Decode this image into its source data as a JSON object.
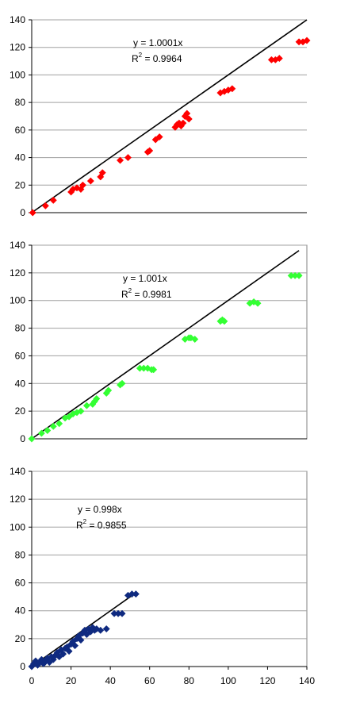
{
  "chart_data": [
    {
      "type": "scatter",
      "xlim": [
        0,
        140
      ],
      "ylim": [
        0,
        140
      ],
      "yticks": [
        "0",
        "20",
        "40",
        "60",
        "80",
        "100",
        "120",
        "140"
      ],
      "xticks": [],
      "grid": "horizontal",
      "marker": "diamond",
      "color": "#ff0000",
      "trendline": {
        "slope": 1.0001,
        "color": "#000000"
      },
      "annotation": {
        "equation": "y = 1.0001x",
        "r2_label": "R",
        "r2_sup": "2",
        "r2_value": " = 0.9964"
      },
      "points": [
        [
          0.5,
          0
        ],
        [
          7,
          5
        ],
        [
          11,
          9
        ],
        [
          20,
          15
        ],
        [
          21,
          17
        ],
        [
          23,
          18
        ],
        [
          25,
          17
        ],
        [
          26,
          20
        ],
        [
          30,
          23
        ],
        [
          35,
          26
        ],
        [
          36,
          29
        ],
        [
          45,
          38
        ],
        [
          49,
          40
        ],
        [
          59,
          44
        ],
        [
          60,
          45
        ],
        [
          63,
          53
        ],
        [
          65,
          55
        ],
        [
          73,
          62
        ],
        [
          74,
          64
        ],
        [
          75,
          65
        ],
        [
          76,
          63
        ],
        [
          77,
          65
        ],
        [
          78,
          70
        ],
        [
          79,
          72
        ],
        [
          80,
          68
        ],
        [
          96,
          87
        ],
        [
          98,
          88
        ],
        [
          100,
          89
        ],
        [
          102,
          90
        ],
        [
          122,
          111
        ],
        [
          124,
          111
        ],
        [
          126,
          112
        ],
        [
          136,
          124
        ],
        [
          138,
          124
        ],
        [
          140,
          125
        ]
      ]
    },
    {
      "type": "scatter",
      "xlim": [
        0,
        140
      ],
      "ylim": [
        0,
        140
      ],
      "yticks": [
        "0",
        "20",
        "40",
        "60",
        "80",
        "100",
        "120",
        "140"
      ],
      "xticks": [],
      "grid": "horizontal",
      "marker": "diamond",
      "color": "#33ff33",
      "trendline": {
        "slope": 1.001,
        "color": "#000000"
      },
      "annotation": {
        "equation": "y = 1.001x",
        "r2_label": "R",
        "r2_sup": "2",
        "r2_value": " = 0.9981"
      },
      "points": [
        [
          0,
          0
        ],
        [
          5,
          4
        ],
        [
          8,
          6
        ],
        [
          11,
          9
        ],
        [
          14,
          11
        ],
        [
          17,
          15
        ],
        [
          19,
          16
        ],
        [
          21,
          18
        ],
        [
          23,
          19
        ],
        [
          25,
          20
        ],
        [
          28,
          24
        ],
        [
          31,
          25
        ],
        [
          32,
          27
        ],
        [
          33,
          29
        ],
        [
          38,
          33
        ],
        [
          39,
          35
        ],
        [
          45,
          39
        ],
        [
          46,
          40
        ],
        [
          55,
          51
        ],
        [
          57,
          51
        ],
        [
          59,
          51
        ],
        [
          61,
          50
        ],
        [
          62,
          50
        ],
        [
          78,
          72
        ],
        [
          80,
          73
        ],
        [
          81,
          73
        ],
        [
          83,
          72
        ],
        [
          96,
          85
        ],
        [
          97,
          86
        ],
        [
          98,
          85
        ],
        [
          111,
          98
        ],
        [
          113,
          99
        ],
        [
          115,
          98
        ],
        [
          132,
          118
        ],
        [
          134,
          118
        ],
        [
          136,
          118
        ]
      ]
    },
    {
      "type": "scatter",
      "xlim": [
        0,
        140
      ],
      "ylim": [
        0,
        140
      ],
      "yticks": [
        "0",
        "20",
        "40",
        "60",
        "80",
        "100",
        "120",
        "140"
      ],
      "xticks": [
        "0",
        "20",
        "40",
        "60",
        "80",
        "100",
        "120",
        "140"
      ],
      "grid": "horizontal",
      "marker": "diamond",
      "color": "#0f2a80",
      "trendline": {
        "slope": 0.998,
        "color": "#000000"
      },
      "annotation": {
        "equation": "y = 0.998x",
        "r2_label": "R",
        "r2_sup": "2",
        "r2_value": " = 0.9855"
      },
      "points": [
        [
          0,
          0
        ],
        [
          1,
          2
        ],
        [
          2,
          4
        ],
        [
          3,
          1
        ],
        [
          4,
          3
        ],
        [
          5,
          5
        ],
        [
          6,
          2
        ],
        [
          7,
          4
        ],
        [
          8,
          6
        ],
        [
          9,
          3
        ],
        [
          10,
          7
        ],
        [
          11,
          5
        ],
        [
          12,
          8
        ],
        [
          13,
          10
        ],
        [
          14,
          7
        ],
        [
          15,
          12
        ],
        [
          16,
          9
        ],
        [
          17,
          13
        ],
        [
          18,
          14
        ],
        [
          19,
          11
        ],
        [
          20,
          16
        ],
        [
          21,
          18
        ],
        [
          22,
          15
        ],
        [
          23,
          20
        ],
        [
          24,
          22
        ],
        [
          25,
          19
        ],
        [
          26,
          24
        ],
        [
          27,
          26
        ],
        [
          28,
          23
        ],
        [
          29,
          27
        ],
        [
          30,
          25
        ],
        [
          31,
          28
        ],
        [
          32,
          26
        ],
        [
          33,
          27
        ],
        [
          35,
          26
        ],
        [
          38,
          27
        ],
        [
          42,
          38
        ],
        [
          44,
          38
        ],
        [
          46,
          38
        ],
        [
          49,
          51
        ],
        [
          51,
          52
        ],
        [
          53,
          52
        ]
      ]
    }
  ]
}
